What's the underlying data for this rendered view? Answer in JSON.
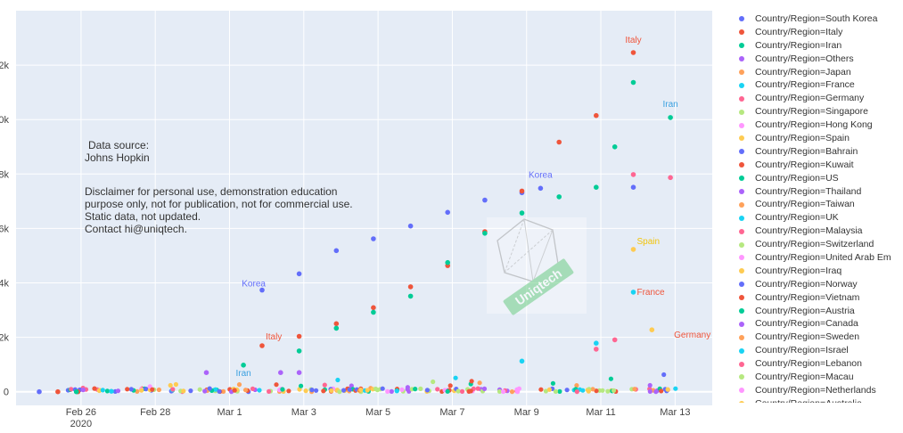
{
  "chart_data": {
    "type": "scatter",
    "title": "",
    "xlabel": "",
    "ylabel": "",
    "x_ticks": [
      "Feb 26\n2020",
      "Feb 28",
      "Mar 1",
      "Mar 3",
      "Mar 5",
      "Mar 7",
      "Mar 9",
      "Mar 11",
      "Mar 13"
    ],
    "y_ticks": [
      "0",
      "2k",
      "4k",
      "6k",
      "8k",
      "10k",
      "12k"
    ],
    "xlim": [
      "2020-02-24T06:00",
      "2020-03-14T00:00"
    ],
    "ylim": [
      -500,
      14000
    ],
    "grid": true,
    "legend_position": "right",
    "legend_title": "",
    "series": [
      {
        "name": "Country/Region=South Korea",
        "color": "#636efa",
        "x": [
          "2020-02-24T21:00",
          "2020-03-01T21:00",
          "2020-03-02T21:00",
          "2020-03-03T21:00",
          "2020-03-04T21:00",
          "2020-03-05T21:00",
          "2020-03-06T21:00",
          "2020-03-07T21:00",
          "2020-03-08T21:00",
          "2020-03-09T09:00",
          "2020-03-11T21:00"
        ],
        "y": [
          0,
          3736,
          4335,
          5186,
          5621,
          6088,
          6593,
          7041,
          7314,
          7478,
          7513
        ]
      },
      {
        "name": "Country/Region=Italy",
        "color": "#ef553b",
        "x": [
          "2020-02-25T09:00",
          "2020-02-25T22:00",
          "2020-03-01T21:00",
          "2020-03-02T21:00",
          "2020-03-03T21:00",
          "2020-03-04T21:00",
          "2020-03-05T21:00",
          "2020-03-06T21:00",
          "2020-03-07T21:00",
          "2020-03-08T21:00",
          "2020-03-09T21:00",
          "2020-03-10T21:00",
          "2020-03-11T21:00"
        ],
        "y": [
          0,
          0,
          1694,
          2036,
          2502,
          3089,
          3858,
          4636,
          5883,
          7375,
          9172,
          10149,
          12462
        ]
      },
      {
        "name": "Country/Region=Iran",
        "color": "#00cc96",
        "x": [
          "2020-02-25T21:00",
          "2020-03-01T09:00",
          "2020-03-02T21:00",
          "2020-03-03T21:00",
          "2020-03-04T21:00",
          "2020-03-05T21:00",
          "2020-03-06T21:00",
          "2020-03-07T21:00",
          "2020-03-08T21:00",
          "2020-03-09T21:00",
          "2020-03-10T21:00",
          "2020-03-11T09:00",
          "2020-03-11T21:00",
          "2020-03-12T21:00"
        ],
        "y": [
          0,
          978,
          1501,
          2336,
          2922,
          3513,
          4747,
          5823,
          6566,
          7161,
          7513,
          9000,
          11364,
          10075
        ]
      },
      {
        "name": "Country/Region=Others",
        "color": "#ab63fa",
        "x": [
          "2020-02-29T09:00",
          "2020-03-02T09:00",
          "2020-03-02T21:00"
        ],
        "y": [
          705,
          705,
          706
        ]
      },
      {
        "name": "Country/Region=Spain",
        "color": "#fecb52",
        "x": [
          "2020-03-11T21:00",
          "2020-03-12T09:00"
        ],
        "y": [
          5232,
          2277
        ]
      },
      {
        "name": "Country/Region=France",
        "color": "#19d3f3",
        "x": [
          "2020-03-11T21:00",
          "2020-03-10T21:00",
          "2020-03-08T21:00"
        ],
        "y": [
          3661,
          1784,
          1126
        ]
      },
      {
        "name": "Country/Region=Germany",
        "color": "#ff6692",
        "x": [
          "2020-03-11T21:00",
          "2020-03-12T21:00",
          "2020-03-10T21:00",
          "2020-03-11T09:00"
        ],
        "y": [
          7982,
          7870,
          1565,
          1908
        ]
      }
    ]
  },
  "labels": {
    "italy_top": "Italy",
    "iran_top": "Iran",
    "korea_mid": "Korea",
    "spain": "Spain",
    "france": "France",
    "germany": "Germany",
    "korea_low": "Korea",
    "italy_low": "Italy",
    "iran_low": "Iran"
  },
  "notes": {
    "source_line1": "Data source:",
    "source_line2": "Johns Hopkin",
    "disclaimer_line1": "Disclaimer for personal use, demonstration education",
    "disclaimer_line2": "purpose only, not for publication, not for commercial use.",
    "disclaimer_line3": "Static data, not updated.",
    "disclaimer_line4": "Contact hi@uniqtech."
  },
  "watermark_text": "Uniqtech",
  "legend": [
    {
      "label": "Country/Region=South Korea",
      "color": "#636efa"
    },
    {
      "label": "Country/Region=Italy",
      "color": "#ef553b"
    },
    {
      "label": "Country/Region=Iran",
      "color": "#00cc96"
    },
    {
      "label": "Country/Region=Others",
      "color": "#ab63fa"
    },
    {
      "label": "Country/Region=Japan",
      "color": "#ffa15a"
    },
    {
      "label": "Country/Region=France",
      "color": "#19d3f3"
    },
    {
      "label": "Country/Region=Germany",
      "color": "#ff6692"
    },
    {
      "label": "Country/Region=Singapore",
      "color": "#b6e880"
    },
    {
      "label": "Country/Region=Hong Kong",
      "color": "#ff97ff"
    },
    {
      "label": "Country/Region=Spain",
      "color": "#fecb52"
    },
    {
      "label": "Country/Region=Bahrain",
      "color": "#636efa"
    },
    {
      "label": "Country/Region=Kuwait",
      "color": "#ef553b"
    },
    {
      "label": "Country/Region=US",
      "color": "#00cc96"
    },
    {
      "label": "Country/Region=Thailand",
      "color": "#ab63fa"
    },
    {
      "label": "Country/Region=Taiwan",
      "color": "#ffa15a"
    },
    {
      "label": "Country/Region=UK",
      "color": "#19d3f3"
    },
    {
      "label": "Country/Region=Malaysia",
      "color": "#ff6692"
    },
    {
      "label": "Country/Region=Switzerland",
      "color": "#b6e880"
    },
    {
      "label": "Country/Region=United Arab Em",
      "color": "#ff97ff"
    },
    {
      "label": "Country/Region=Iraq",
      "color": "#fecb52"
    },
    {
      "label": "Country/Region=Norway",
      "color": "#636efa"
    },
    {
      "label": "Country/Region=Vietnam",
      "color": "#ef553b"
    },
    {
      "label": "Country/Region=Austria",
      "color": "#00cc96"
    },
    {
      "label": "Country/Region=Canada",
      "color": "#ab63fa"
    },
    {
      "label": "Country/Region=Sweden",
      "color": "#ffa15a"
    },
    {
      "label": "Country/Region=Israel",
      "color": "#19d3f3"
    },
    {
      "label": "Country/Region=Lebanon",
      "color": "#ff6692"
    },
    {
      "label": "Country/Region=Macau",
      "color": "#b6e880"
    },
    {
      "label": "Country/Region=Netherlands",
      "color": "#ff97ff"
    },
    {
      "label": "Country/Region=Australia",
      "color": "#fecb52"
    }
  ],
  "colors": {
    "plot_bg": "#e5ecf6",
    "grid": "#ffffff",
    "korea_label": "#636efa",
    "italy_label": "#ef553b",
    "iran_label": "#3aa0e0",
    "spain_label": "#f2c40b",
    "france_label": "#ef553b",
    "germany_label": "#ef553b"
  }
}
